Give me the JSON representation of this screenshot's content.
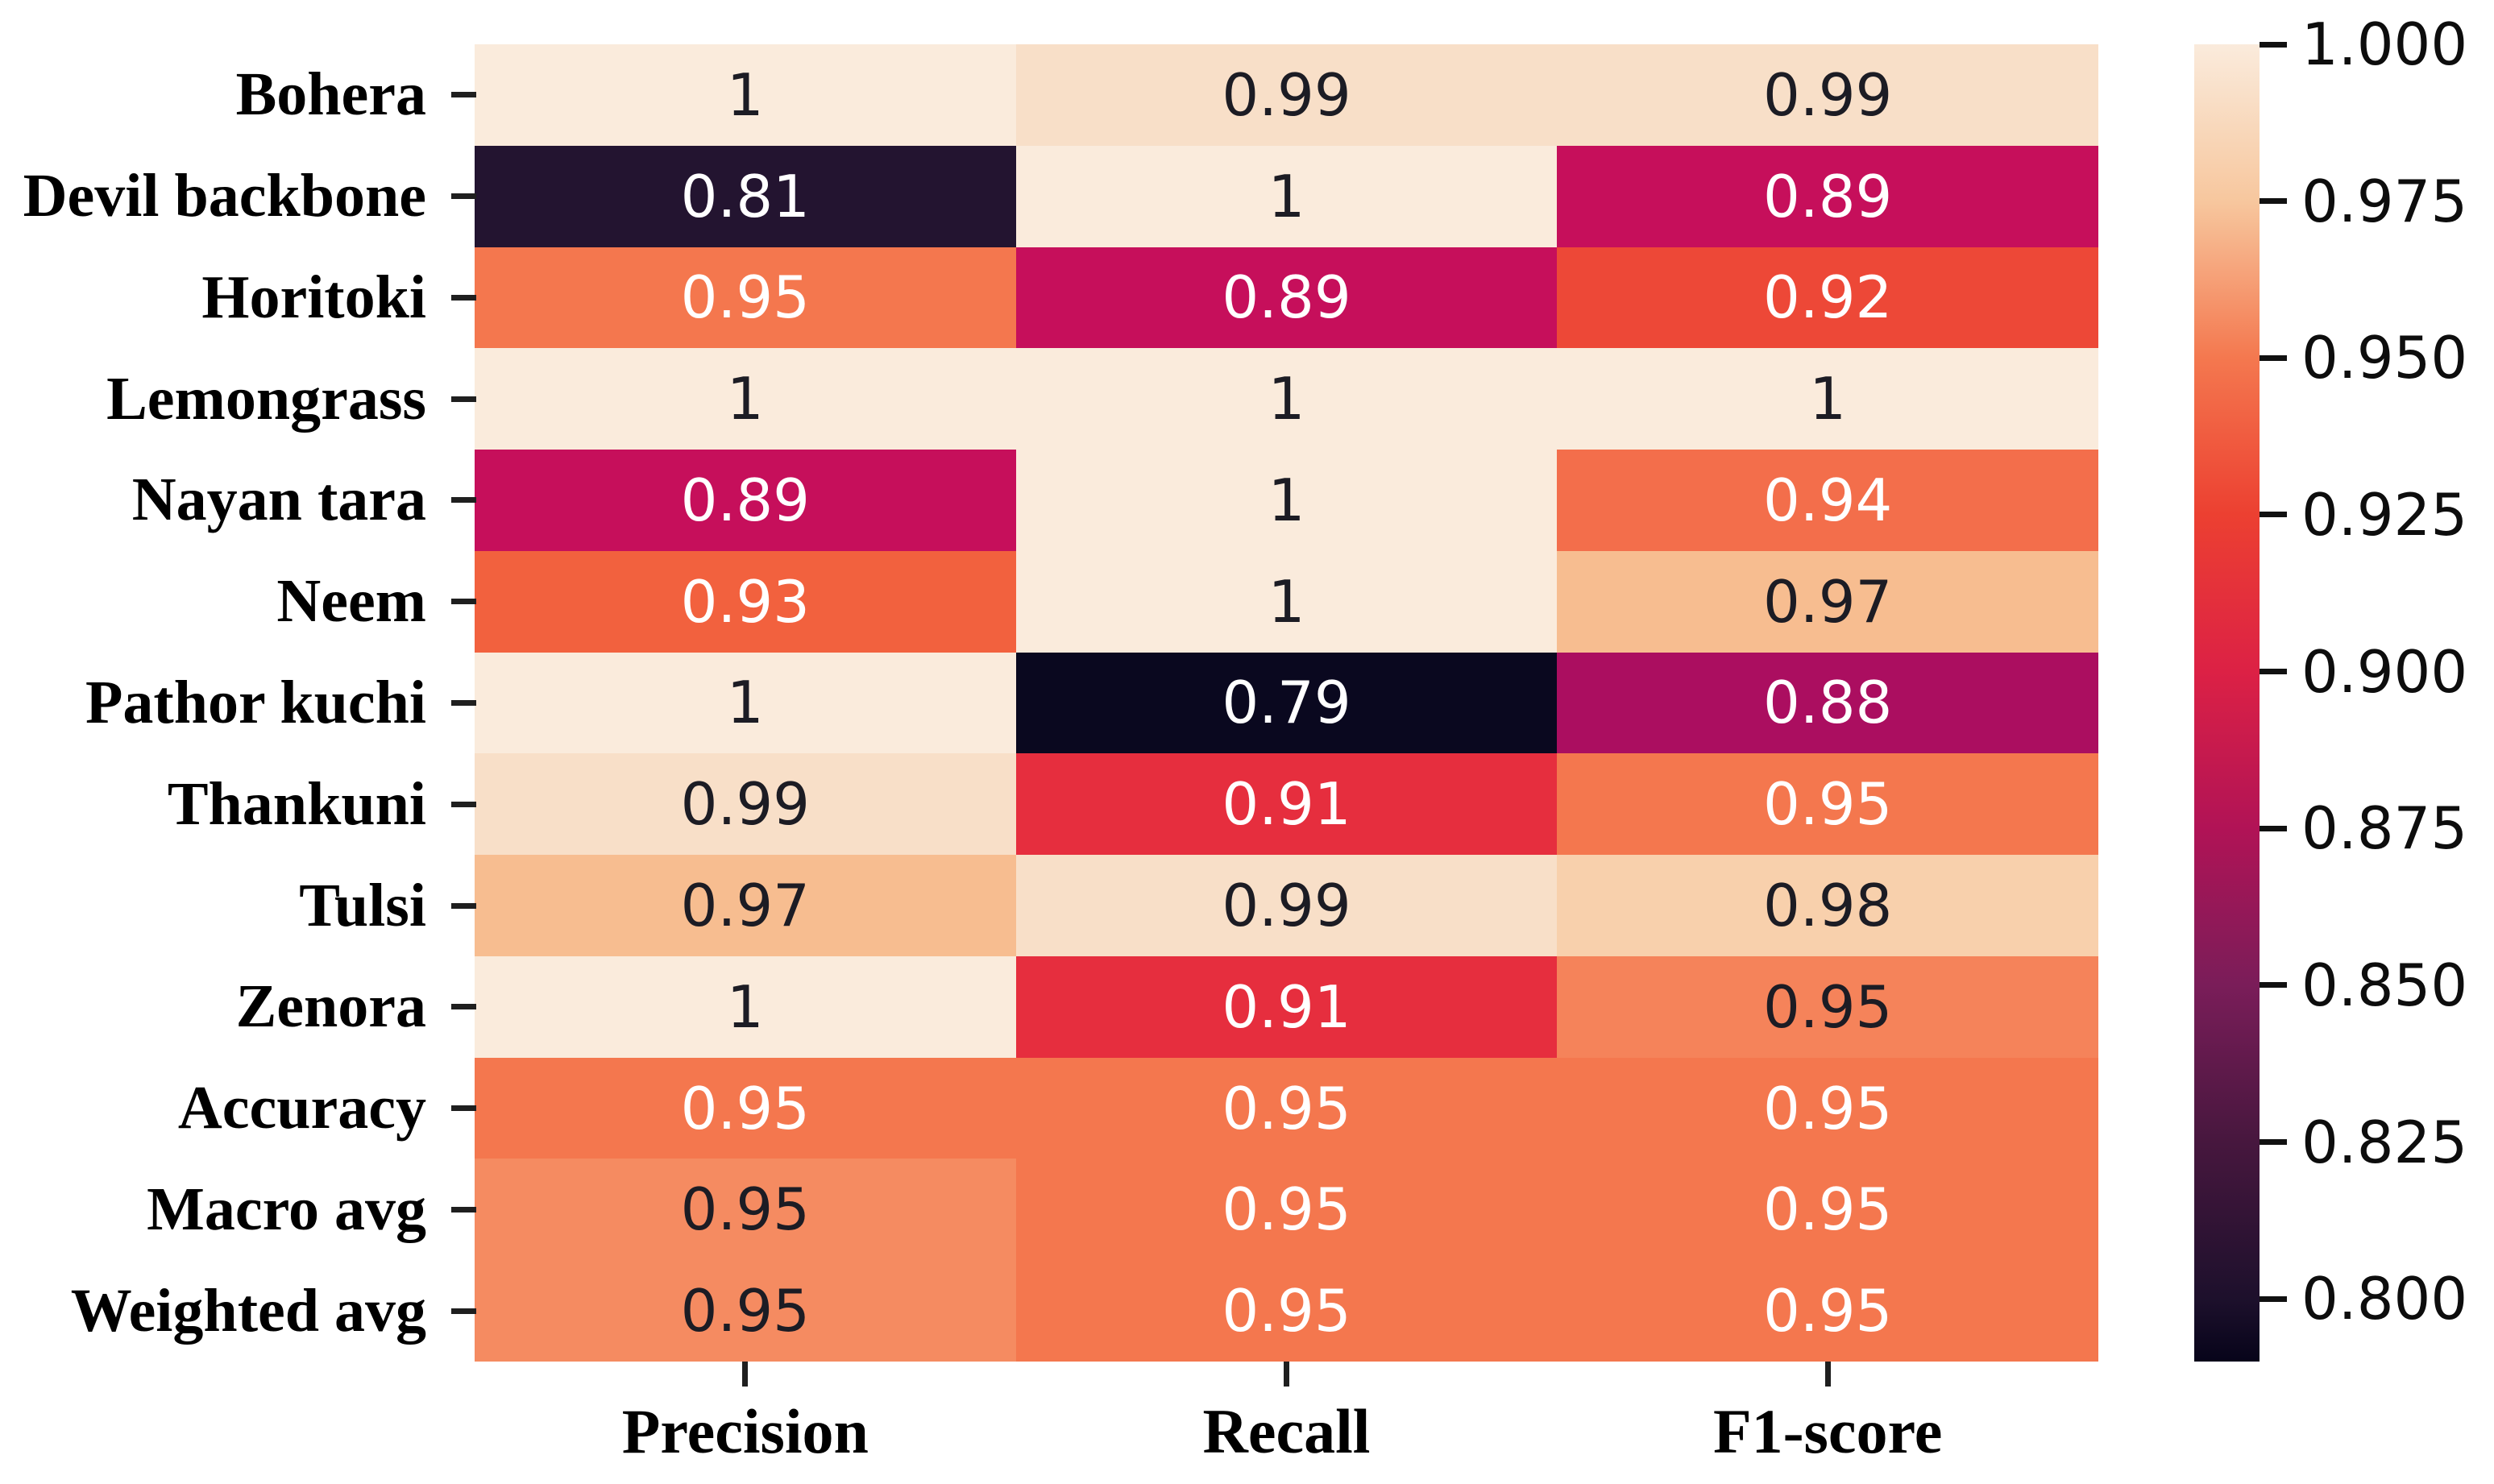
{
  "figure": {
    "background_color": "#ffffff",
    "annotation_dark_text_color": "#1c1c24",
    "annotation_light_text_color": "#ffffff",
    "axis_label_color": "#000000",
    "tick_color": "#1f1f1f"
  },
  "chart_data": {
    "type": "heatmap",
    "title": "",
    "xlabel": "",
    "ylabel": "",
    "rows": [
      "Bohera",
      "Devil backbone",
      "Horitoki",
      "Lemongrass",
      "Nayan tara",
      "Neem",
      "Pathor kuchi",
      "Thankuni",
      "Tulsi",
      "Zenora",
      "Accuracy",
      "Macro avg",
      "Weighted avg"
    ],
    "columns": [
      "Precision",
      "Recall",
      "F1-score"
    ],
    "values": [
      [
        1,
        0.99,
        0.99
      ],
      [
        0.81,
        1,
        0.89
      ],
      [
        0.95,
        0.89,
        0.92
      ],
      [
        1,
        1,
        1
      ],
      [
        0.89,
        1,
        0.94
      ],
      [
        0.93,
        1,
        0.97
      ],
      [
        1,
        0.79,
        0.88
      ],
      [
        0.99,
        0.91,
        0.95
      ],
      [
        0.97,
        0.99,
        0.98
      ],
      [
        1,
        0.91,
        0.95
      ],
      [
        0.95,
        0.95,
        0.95
      ],
      [
        0.95,
        0.95,
        0.95
      ],
      [
        0.95,
        0.95,
        0.95
      ]
    ],
    "cells": [
      [
        {
          "v": "1",
          "bg": "#FAEBDC",
          "fg": "dark"
        },
        {
          "v": "0.99",
          "bg": "#F8DFC8",
          "fg": "dark"
        },
        {
          "v": "0.99",
          "bg": "#F8DFC8",
          "fg": "dark"
        }
      ],
      [
        {
          "v": "0.81",
          "bg": "#231430",
          "fg": "light"
        },
        {
          "v": "1",
          "bg": "#FAEBDC",
          "fg": "dark"
        },
        {
          "v": "0.89",
          "bg": "#C60F5B",
          "fg": "light"
        }
      ],
      [
        {
          "v": "0.95",
          "bg": "#F4774E",
          "fg": "light"
        },
        {
          "v": "0.89",
          "bg": "#C60F5B",
          "fg": "light"
        },
        {
          "v": "0.92",
          "bg": "#ED4837",
          "fg": "light"
        }
      ],
      [
        {
          "v": "1",
          "bg": "#FAEBDC",
          "fg": "dark"
        },
        {
          "v": "1",
          "bg": "#FAEBDC",
          "fg": "dark"
        },
        {
          "v": "1",
          "bg": "#FAEBDC",
          "fg": "dark"
        }
      ],
      [
        {
          "v": "0.89",
          "bg": "#C60F5B",
          "fg": "light"
        },
        {
          "v": "1",
          "bg": "#FAEBDC",
          "fg": "dark"
        },
        {
          "v": "0.94",
          "bg": "#F36E4B",
          "fg": "light"
        }
      ],
      [
        {
          "v": "0.93",
          "bg": "#F2613E",
          "fg": "light"
        },
        {
          "v": "1",
          "bg": "#FAEBDC",
          "fg": "dark"
        },
        {
          "v": "0.97",
          "bg": "#F7BD90",
          "fg": "dark"
        }
      ],
      [
        {
          "v": "1",
          "bg": "#FAEBDC",
          "fg": "dark"
        },
        {
          "v": "0.79",
          "bg": "#0A081F",
          "fg": "light"
        },
        {
          "v": "0.88",
          "bg": "#AB0E60",
          "fg": "light"
        }
      ],
      [
        {
          "v": "0.99",
          "bg": "#F8DFC8",
          "fg": "dark"
        },
        {
          "v": "0.91",
          "bg": "#E62E3E",
          "fg": "light"
        },
        {
          "v": "0.95",
          "bg": "#F4774E",
          "fg": "light"
        }
      ],
      [
        {
          "v": "0.97",
          "bg": "#F7BD90",
          "fg": "dark"
        },
        {
          "v": "0.99",
          "bg": "#F8DFC8",
          "fg": "dark"
        },
        {
          "v": "0.98",
          "bg": "#F8D0AC",
          "fg": "dark"
        }
      ],
      [
        {
          "v": "1",
          "bg": "#FAEBDC",
          "fg": "dark"
        },
        {
          "v": "0.91",
          "bg": "#E62E3E",
          "fg": "light"
        },
        {
          "v": "0.95",
          "bg": "#F5835A",
          "fg": "dark"
        }
      ],
      [
        {
          "v": "0.95",
          "bg": "#F4774E",
          "fg": "light"
        },
        {
          "v": "0.95",
          "bg": "#F4774E",
          "fg": "light"
        },
        {
          "v": "0.95",
          "bg": "#F4774E",
          "fg": "light"
        }
      ],
      [
        {
          "v": "0.95",
          "bg": "#F58B61",
          "fg": "dark"
        },
        {
          "v": "0.95",
          "bg": "#F4774E",
          "fg": "light"
        },
        {
          "v": "0.95",
          "bg": "#F4774E",
          "fg": "light"
        }
      ],
      [
        {
          "v": "0.95",
          "bg": "#F58B61",
          "fg": "dark"
        },
        {
          "v": "0.95",
          "bg": "#F4774E",
          "fg": "light"
        },
        {
          "v": "0.95",
          "bg": "#F4774E",
          "fg": "light"
        }
      ]
    ],
    "colormap": "rocket",
    "vmin": 0.79,
    "vmax": 1.0,
    "grid": false,
    "legend_position": "colorbar-right",
    "colorbar_ticks": [
      {
        "label": "1.000",
        "value": 1.0
      },
      {
        "label": "0.975",
        "value": 0.975
      },
      {
        "label": "0.950",
        "value": 0.95
      },
      {
        "label": "0.925",
        "value": 0.925
      },
      {
        "label": "0.900",
        "value": 0.9
      },
      {
        "label": "0.875",
        "value": 0.875
      },
      {
        "label": "0.850",
        "value": 0.85
      },
      {
        "label": "0.825",
        "value": 0.825
      },
      {
        "label": "0.800",
        "value": 0.8
      }
    ],
    "colorbar_gradient": [
      {
        "value": 0.79,
        "color": "#07041A"
      },
      {
        "value": 0.8,
        "color": "#1D102C"
      },
      {
        "value": 0.825,
        "color": "#47173E"
      },
      {
        "value": 0.85,
        "color": "#7A1D59"
      },
      {
        "value": 0.875,
        "color": "#B11356"
      },
      {
        "value": 0.9,
        "color": "#DC2145"
      },
      {
        "value": 0.925,
        "color": "#EC4031"
      },
      {
        "value": 0.95,
        "color": "#F4784F"
      },
      {
        "value": 0.975,
        "color": "#F7C79E"
      },
      {
        "value": 1.0,
        "color": "#FAEBDC"
      }
    ]
  }
}
